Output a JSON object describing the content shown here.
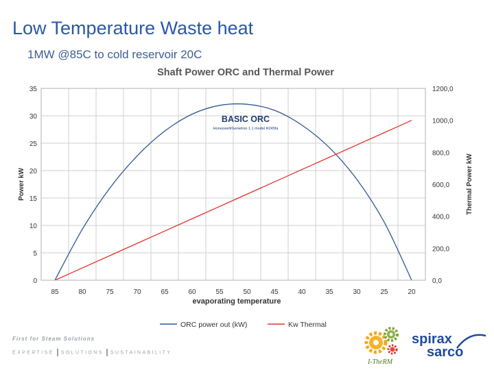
{
  "slide": {
    "title": "Low Temperature Waste heat",
    "subtitle": "1MW @85C to cold reservoir 20C",
    "tagline": "First for Steam Solutions",
    "values": [
      "EXPERTISE",
      "SOLUTIONS",
      "SUSTAINABILITY"
    ],
    "logos": {
      "itherm_label": "I-TheRM",
      "spirax_line1": "spirax",
      "spirax_line2": "sarco"
    }
  },
  "chart_data": {
    "type": "line",
    "title": "Shaft Power ORC and Thermal Power",
    "annotation": {
      "title": "BASIC ORC",
      "subtitle": "Honeywell/Genetron 1.1 model R245fa"
    },
    "xlabel": "evaporating temperature",
    "ylabel": "Power kW",
    "y2label": "Thermal Power kW",
    "x": [
      85,
      80,
      75,
      70,
      65,
      60,
      55,
      50,
      45,
      40,
      35,
      30,
      25,
      20
    ],
    "x_reversed": true,
    "ylim": [
      0,
      35
    ],
    "yticks": [
      "0",
      "5",
      "10",
      "15",
      "20",
      "25",
      "30",
      "35"
    ],
    "y2lim": [
      0,
      1200
    ],
    "y2ticks": [
      "0,0",
      "200,0",
      "400,0",
      "600,0",
      "800,0",
      "1000,0",
      "1200,0"
    ],
    "grid": true,
    "legend": "bottom",
    "series": [
      {
        "name": "ORC power out (kW)",
        "axis": "left",
        "color": "#2f5597",
        "values": [
          0,
          9.3,
          16.8,
          22.7,
          27.2,
          30.3,
          31.9,
          32.1,
          31.0,
          28.3,
          24.2,
          18.4,
          10.6,
          0
        ]
      },
      {
        "name": "Kw Thermal",
        "axis": "right",
        "color": "#e0312b",
        "values": [
          0,
          76.9,
          153.8,
          230.8,
          307.7,
          384.6,
          461.5,
          538.5,
          615.4,
          692.3,
          769.2,
          846.2,
          923.1,
          1000
        ]
      }
    ]
  }
}
